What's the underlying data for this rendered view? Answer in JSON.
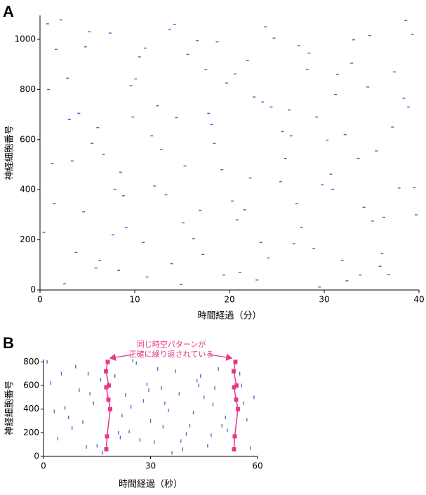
{
  "chart_data": [
    {
      "type": "scatter",
      "label": "A",
      "x_label": "時間経過（分）",
      "y_label": "神経細胞番号",
      "xlim": [
        0,
        40
      ],
      "xticks": [
        0,
        10,
        20,
        30,
        40
      ],
      "ylim": [
        0,
        1095
      ],
      "yticks": [
        0,
        200,
        400,
        600,
        800,
        1000
      ],
      "series": [
        {
          "color": "#3a66d0",
          "x": [
            0.8,
            2.9,
            4.6,
            6.7,
            8.3,
            10.5,
            12.1,
            14.4,
            16.2,
            18.7,
            20.3,
            22.6,
            24.1,
            26.5,
            28.2,
            30.7,
            32.4,
            34.8,
            36.3,
            38.9,
            1.7,
            3.8,
            5.5,
            7.9,
            9.6,
            11.3,
            13.7,
            15.1,
            17.8,
            19.2,
            21.9,
            23.3,
            25.6,
            27.1,
            29.5,
            31.2,
            33.6,
            35.9,
            37.4,
            39.5,
            0.4,
            2.2,
            4.1,
            6.3,
            8.8,
            10.1,
            12.8,
            14.9,
            16.6,
            18.1,
            20.8,
            22.2,
            24.7,
            26.3,
            28.9,
            30.3,
            32.9,
            34.2,
            36.8,
            38.4,
            1.3,
            3.1,
            5.9,
            7.4,
            9.1,
            11.8,
            13.3,
            15.6,
            17.2,
            19.7,
            21.1,
            23.8,
            25.4,
            27.6,
            29.2,
            31.9,
            33.1,
            35.5,
            37.9,
            39.7,
            0.9,
            2.6,
            4.8,
            6.1,
            8.5,
            10.9,
            12.4,
            14.2,
            16.9,
            18.4,
            20.6,
            22.9,
            24.4,
            26.8,
            28.4,
            30.9,
            32.2,
            34.6,
            36.1,
            38.6,
            1.5,
            3.4,
            5.2,
            7.7,
            9.8,
            11.1,
            13.9,
            15.3,
            17.5,
            19.4,
            21.6,
            23.5,
            25.9,
            27.3,
            29.8,
            31.4,
            33.8,
            35.1,
            37.2,
            39.3
          ],
          "y": [
            1062,
            845,
            312,
            540,
            78,
            930,
            415,
            688,
            205,
            990,
            355,
            770,
            128,
            615,
            880,
            462,
            37,
            1015,
            290,
            730,
            960,
            150,
            585,
            402,
            815,
            52,
            1040,
            268,
            705,
            480,
            915,
            190,
            632,
            345,
            12,
            780,
            525,
            95,
            870,
            410,
            230,
            1078,
            705,
            118,
            376,
            842,
            560,
            22,
            995,
            660,
            280,
            447,
            1005,
            718,
            165,
            598,
            905,
            330,
            62,
            765,
            505,
            680,
            88,
            1025,
            250,
            615,
            380,
            940,
            142,
            826,
            70,
            1050,
            432,
            250,
            690,
            118,
            998,
            555,
            407,
            300,
            800,
            25,
            970,
            648,
            470,
            190,
            735,
            1060,
            318,
            585,
            862,
            40,
            730,
            185,
            945,
            402,
            620,
            810,
            145,
            1075,
            345,
            515,
            1030,
            220,
            690,
            965,
            105,
            495,
            880,
            60,
            320,
            750,
            525,
            975,
            420,
            860,
            60,
            275,
            650,
            1020
          ]
        }
      ]
    },
    {
      "type": "scatter",
      "label": "B",
      "x_label": "時間経過（秒）",
      "y_label": "神経細胞番号",
      "annotation": [
        "同じ時空パターンが",
        "正確に繰り返されている"
      ],
      "xlim": [
        0,
        60
      ],
      "xticks": [
        0,
        30,
        60
      ],
      "ylim": [
        0,
        820
      ],
      "yticks": [
        0,
        200,
        400,
        600,
        800
      ],
      "series": [
        {
          "color": "#3a66d0",
          "x": [
            2,
            4,
            6,
            9,
            11,
            13,
            15,
            20,
            22,
            24,
            26,
            28,
            31,
            33,
            35,
            37,
            39,
            41,
            43,
            45,
            47,
            49,
            51,
            56,
            58,
            3,
            5,
            8,
            10,
            12,
            14,
            16,
            21,
            23,
            25,
            27,
            29,
            30,
            32,
            34,
            36,
            38,
            40,
            42,
            44,
            46,
            48,
            50,
            55,
            57,
            1,
            7,
            12.5,
            16.5,
            21.5,
            24.5,
            29.5,
            33.5,
            38.5,
            43.5,
            47.5,
            51.5,
            55.5,
            59
          ],
          "y": [
            620,
            150,
            410,
            760,
            290,
            530,
            90,
            680,
            345,
            210,
            790,
            470,
            120,
            580,
            390,
            720,
            60,
            260,
            640,
            500,
            180,
            740,
            330,
            450,
            70,
            380,
            700,
            240,
            560,
            80,
            450,
            650,
            200,
            520,
            810,
            140,
            610,
            300,
            740,
            450,
            30,
            530,
            190,
            370,
            680,
            90,
            580,
            260,
            700,
            310,
            800,
            330,
            700,
            30,
            160,
            420,
            560,
            250,
            130,
            600,
            440,
            220,
            600,
            500
          ]
        },
        {
          "color": "#e6388a",
          "connected": true,
          "x": [
            18,
            17.5,
            18.3,
            17.6,
            18.2,
            18.7,
            17.8,
            17.6
          ],
          "y": [
            800,
            720,
            600,
            585,
            480,
            400,
            170,
            60
          ]
        },
        {
          "color": "#e6388a",
          "connected": true,
          "x": [
            53.8,
            53.3,
            54.1,
            53.4,
            54,
            54.5,
            53.6,
            53.4
          ],
          "y": [
            800,
            720,
            600,
            585,
            480,
            400,
            170,
            60
          ]
        }
      ]
    }
  ]
}
